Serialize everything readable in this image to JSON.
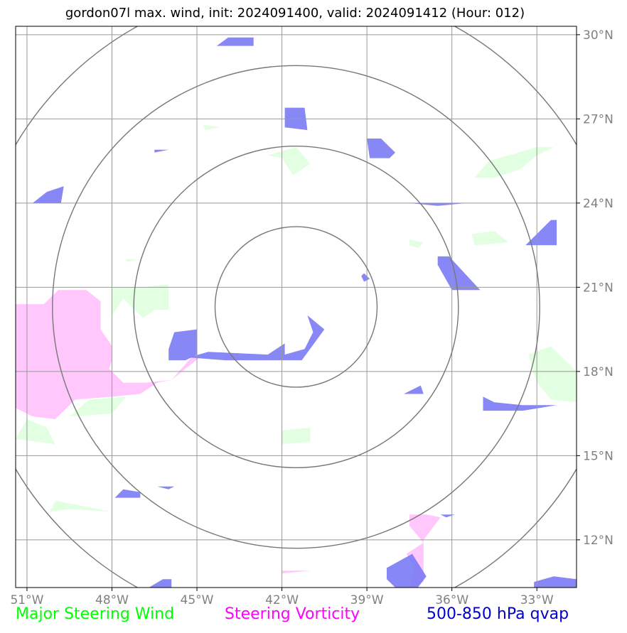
{
  "title": "gordon07l max. wind, init: 2024091400, valid: 2024091412 (Hour: 012)",
  "colors": {
    "steering_wind": "#00ff00",
    "steering_vorticity": "#ff00ff",
    "qvap": "#0000cc",
    "grid": "#999999",
    "range_rings": "#777777",
    "tick_labels": "#808080",
    "wind_fill": "#e2ffe2",
    "vorticity_fill": "#ffbdfa",
    "qvap_fill": "#7a7af5"
  },
  "legend": {
    "wind_label": "Major Steering Wind",
    "vorticity_label": "Steering Vorticity",
    "qvap_label": "500-850 hPa qvap"
  },
  "axes": {
    "lon_range": [
      -51.4,
      -31.6
    ],
    "lat_range": [
      10.3,
      30.3
    ],
    "x_ticks": [
      {
        "value": -51,
        "label": "51°W"
      },
      {
        "value": -48,
        "label": "48°W"
      },
      {
        "value": -45,
        "label": "45°W"
      },
      {
        "value": -42,
        "label": "42°W"
      },
      {
        "value": -39,
        "label": "39°W"
      },
      {
        "value": -36,
        "label": "36°W"
      },
      {
        "value": -33,
        "label": "33°W"
      }
    ],
    "y_ticks": [
      {
        "value": 30,
        "label": "30°N"
      },
      {
        "value": 27,
        "label": "27°N"
      },
      {
        "value": 24,
        "label": "24°N"
      },
      {
        "value": 21,
        "label": "21°N"
      },
      {
        "value": 18,
        "label": "18°N"
      },
      {
        "value": 15,
        "label": "15°N"
      },
      {
        "value": 12,
        "label": "12°N"
      }
    ]
  },
  "range_rings": {
    "center": [
      -41.5,
      20.3
    ],
    "radii_deg": [
      2.86,
      5.73,
      8.6,
      11.46
    ]
  },
  "qvap_regions": [
    [
      [
        -41.9,
        18.6
      ],
      [
        -41.2,
        18.8
      ],
      [
        -40.9,
        19.4
      ],
      [
        -41.1,
        20.0
      ],
      [
        -40.5,
        19.5
      ],
      [
        -41.3,
        18.4
      ],
      [
        -42.3,
        18.4
      ],
      [
        -44.0,
        18.4
      ],
      [
        -45.3,
        18.5
      ],
      [
        -44.6,
        18.7
      ],
      [
        -42.5,
        18.6
      ],
      [
        -41.9,
        19.0
      ],
      [
        -41.9,
        18.6
      ]
    ],
    [
      [
        -45.0,
        19.5
      ],
      [
        -45.8,
        19.4
      ],
      [
        -46.0,
        18.8
      ],
      [
        -46.0,
        18.4
      ],
      [
        -45.4,
        18.4
      ],
      [
        -45.0,
        18.6
      ],
      [
        -45.0,
        19.5
      ]
    ],
    [
      [
        -41.9,
        27.4
      ],
      [
        -41.2,
        27.4
      ],
      [
        -41.1,
        26.6
      ],
      [
        -41.9,
        26.7
      ],
      [
        -41.9,
        27.4
      ]
    ],
    [
      [
        -39.0,
        26.3
      ],
      [
        -38.5,
        26.3
      ],
      [
        -38.0,
        25.8
      ],
      [
        -38.2,
        25.6
      ],
      [
        -38.9,
        25.6
      ],
      [
        -39.0,
        26.3
      ]
    ],
    [
      [
        -36.5,
        22.1
      ],
      [
        -36.1,
        22.1
      ],
      [
        -35.0,
        20.9
      ],
      [
        -35.5,
        20.9
      ],
      [
        -36.0,
        20.9
      ],
      [
        -36.5,
        21.8
      ],
      [
        -36.5,
        22.1
      ]
    ],
    [
      [
        -32.5,
        23.4
      ],
      [
        -32.3,
        23.4
      ],
      [
        -32.3,
        22.5
      ],
      [
        -33.4,
        22.5
      ],
      [
        -32.5,
        23.4
      ]
    ],
    [
      [
        -43.9,
        29.9
      ],
      [
        -43.0,
        29.9
      ],
      [
        -43.0,
        29.6
      ],
      [
        -44.3,
        29.6
      ],
      [
        -43.9,
        29.9
      ]
    ],
    [
      [
        -49.7,
        24.6
      ],
      [
        -49.8,
        24.0
      ],
      [
        -50.8,
        24.0
      ],
      [
        -50.3,
        24.4
      ],
      [
        -49.7,
        24.6
      ]
    ],
    [
      [
        -34.9,
        17.1
      ],
      [
        -34.5,
        16.9
      ],
      [
        -33.5,
        16.8
      ],
      [
        -32.3,
        16.8
      ],
      [
        -33.5,
        16.6
      ],
      [
        -34.9,
        16.6
      ],
      [
        -34.9,
        17.1
      ]
    ],
    [
      [
        -37.1,
        17.5
      ],
      [
        -37.7,
        17.2
      ],
      [
        -37.0,
        17.2
      ],
      [
        -37.1,
        17.5
      ]
    ],
    [
      [
        -47.0,
        13.7
      ],
      [
        -47.0,
        13.5
      ],
      [
        -47.9,
        13.5
      ],
      [
        -47.6,
        13.8
      ],
      [
        -47.0,
        13.7
      ]
    ],
    [
      [
        -45.8,
        13.9
      ],
      [
        -46.0,
        13.8
      ],
      [
        -46.4,
        13.9
      ],
      [
        -45.8,
        13.9
      ]
    ],
    [
      [
        -38.3,
        11.0
      ],
      [
        -37.4,
        11.5
      ],
      [
        -36.9,
        10.7
      ],
      [
        -37.2,
        10.3
      ],
      [
        -38.0,
        10.3
      ],
      [
        -38.3,
        10.6
      ],
      [
        -38.3,
        11.0
      ]
    ],
    [
      [
        -33.1,
        10.5
      ],
      [
        -32.4,
        10.7
      ],
      [
        -31.6,
        10.6
      ],
      [
        -31.6,
        10.3
      ],
      [
        -33.1,
        10.3
      ],
      [
        -33.1,
        10.5
      ]
    ],
    [
      [
        -46.2,
        10.6
      ],
      [
        -45.9,
        10.6
      ],
      [
        -45.9,
        10.3
      ],
      [
        -46.7,
        10.3
      ],
      [
        -46.2,
        10.6
      ]
    ],
    [
      [
        -37.5,
        24.0
      ],
      [
        -36.0,
        24.0
      ],
      [
        -35.5,
        24.0
      ],
      [
        -36.5,
        23.9
      ],
      [
        -37.5,
        24.0
      ]
    ],
    [
      [
        -39.1,
        21.5
      ],
      [
        -38.9,
        21.3
      ],
      [
        -39.1,
        21.2
      ],
      [
        -39.2,
        21.4
      ],
      [
        -39.1,
        21.5
      ]
    ],
    [
      [
        -36.4,
        12.9
      ],
      [
        -35.9,
        12.9
      ],
      [
        -36.2,
        12.8
      ],
      [
        -36.4,
        12.9
      ]
    ],
    [
      [
        -46.5,
        25.9
      ],
      [
        -46.0,
        25.9
      ],
      [
        -46.5,
        25.8
      ],
      [
        -46.5,
        25.9
      ]
    ]
  ],
  "vorticity_regions": [
    [
      [
        -51.4,
        20.4
      ],
      [
        -50.4,
        20.4
      ],
      [
        -49.9,
        20.9
      ],
      [
        -48.9,
        20.9
      ],
      [
        -48.4,
        20.5
      ],
      [
        -48.4,
        19.5
      ],
      [
        -48.0,
        18.9
      ],
      [
        -48.0,
        18.4
      ],
      [
        -48.1,
        18.1
      ],
      [
        -47.6,
        17.6
      ],
      [
        -46.8,
        17.6
      ],
      [
        -45.9,
        17.7
      ],
      [
        -45.2,
        18.5
      ],
      [
        -44.9,
        18.5
      ],
      [
        -45.9,
        17.7
      ],
      [
        -46.4,
        17.6
      ],
      [
        -47.0,
        17.2
      ],
      [
        -48.0,
        17.1
      ],
      [
        -49.3,
        17.0
      ],
      [
        -50.0,
        16.3
      ],
      [
        -50.8,
        16.4
      ],
      [
        -51.4,
        16.7
      ],
      [
        -51.4,
        20.4
      ]
    ],
    [
      [
        -36.9,
        12.9
      ],
      [
        -36.4,
        12.8
      ],
      [
        -37.0,
        12.0
      ],
      [
        -37.0,
        10.5
      ],
      [
        -37.5,
        10.3
      ],
      [
        -37.3,
        11.0
      ],
      [
        -37.6,
        11.5
      ],
      [
        -37.0,
        11.9
      ],
      [
        -37.5,
        12.5
      ],
      [
        -37.5,
        12.9
      ],
      [
        -36.9,
        12.9
      ]
    ],
    [
      [
        -42.0,
        10.9
      ],
      [
        -41.0,
        10.9
      ],
      [
        -42.0,
        10.8
      ],
      [
        -42.0,
        10.9
      ]
    ]
  ],
  "wind_regions": [
    [
      [
        -48.0,
        21.0
      ],
      [
        -47.0,
        21.0
      ],
      [
        -46.0,
        21.1
      ],
      [
        -46.0,
        20.2
      ],
      [
        -46.5,
        20.2
      ],
      [
        -46.9,
        19.9
      ],
      [
        -47.6,
        20.6
      ],
      [
        -48.0,
        20.0
      ],
      [
        -48.0,
        21.0
      ]
    ],
    [
      [
        -34.7,
        25.5
      ],
      [
        -34.0,
        25.7
      ],
      [
        -33.0,
        26.0
      ],
      [
        -32.4,
        26.0
      ],
      [
        -33.0,
        25.7
      ],
      [
        -33.6,
        25.2
      ],
      [
        -34.5,
        24.9
      ],
      [
        -35.2,
        24.9
      ],
      [
        -34.7,
        25.5
      ]
    ],
    [
      [
        -42.5,
        25.7
      ],
      [
        -41.5,
        26.0
      ],
      [
        -41.0,
        25.4
      ],
      [
        -41.6,
        25.0
      ],
      [
        -42.0,
        25.6
      ],
      [
        -42.5,
        25.7
      ]
    ],
    [
      [
        -34.5,
        23.0
      ],
      [
        -35.3,
        22.9
      ],
      [
        -35.2,
        22.5
      ],
      [
        -34.0,
        22.6
      ],
      [
        -34.5,
        23.0
      ]
    ],
    [
      [
        -37.5,
        22.7
      ],
      [
        -37.0,
        22.6
      ],
      [
        -37.2,
        22.4
      ],
      [
        -37.5,
        22.5
      ],
      [
        -37.5,
        22.7
      ]
    ],
    [
      [
        -33.3,
        18.6
      ],
      [
        -32.5,
        18.9
      ],
      [
        -31.6,
        18.0
      ],
      [
        -31.6,
        16.9
      ],
      [
        -32.5,
        17.0
      ],
      [
        -33.0,
        17.6
      ],
      [
        -33.3,
        18.6
      ]
    ],
    [
      [
        -42.0,
        15.9
      ],
      [
        -41.0,
        16.0
      ],
      [
        -41.0,
        15.5
      ],
      [
        -42.0,
        15.4
      ],
      [
        -42.0,
        15.9
      ]
    ],
    [
      [
        -48.8,
        17.0
      ],
      [
        -47.5,
        17.1
      ],
      [
        -48.0,
        16.5
      ],
      [
        -49.5,
        16.4
      ],
      [
        -48.8,
        17.0
      ]
    ],
    [
      [
        -51.4,
        15.6
      ],
      [
        -50.0,
        15.4
      ],
      [
        -50.3,
        16.0
      ],
      [
        -51.0,
        16.3
      ],
      [
        -51.4,
        15.6
      ]
    ],
    [
      [
        -50.0,
        13.4
      ],
      [
        -48.0,
        13.0
      ],
      [
        -49.5,
        13.1
      ],
      [
        -50.2,
        13.0
      ],
      [
        -50.0,
        13.4
      ]
    ],
    [
      [
        -44.8,
        26.8
      ],
      [
        -44.2,
        26.7
      ],
      [
        -44.7,
        26.6
      ],
      [
        -44.8,
        26.8
      ]
    ],
    [
      [
        -47.5,
        22.0
      ],
      [
        -47.0,
        22.0
      ],
      [
        -47.5,
        21.9
      ],
      [
        -47.5,
        22.0
      ]
    ]
  ]
}
